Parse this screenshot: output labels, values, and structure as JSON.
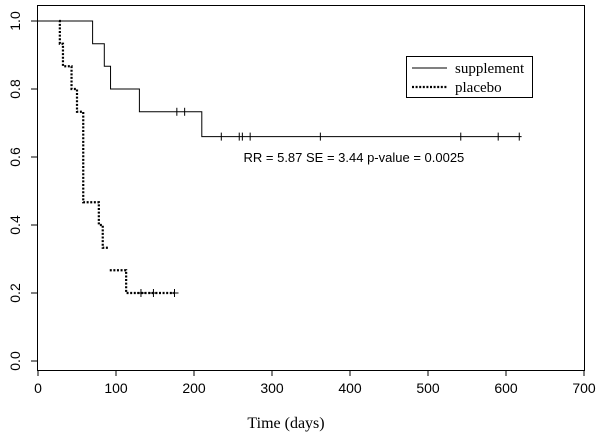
{
  "chart_data": {
    "type": "line",
    "subtype": "kaplan-meier survival curve",
    "title": "",
    "xlabel": "Time (days)",
    "ylabel": "",
    "xlim": [
      0,
      700
    ],
    "ylim": [
      0,
      1
    ],
    "x_ticks": [
      0,
      100,
      200,
      300,
      400,
      500,
      600,
      700
    ],
    "y_ticks": [
      0.0,
      0.2,
      0.4,
      0.6,
      0.8,
      1.0
    ],
    "y_tick_labels": [
      "0.0",
      "0.2",
      "0.4",
      "0.6",
      "0.8",
      "1.0"
    ],
    "legend_position": "top-right",
    "series": [
      {
        "name": "supplement",
        "line_style": "solid",
        "steps": [
          [
            0,
            1.0
          ],
          [
            70,
            0.933
          ],
          [
            85,
            0.867
          ],
          [
            93,
            0.8
          ],
          [
            130,
            0.733
          ],
          [
            210,
            0.66
          ],
          [
            620,
            0.66
          ]
        ],
        "censored": [
          [
            178,
            0.733
          ],
          [
            188,
            0.733
          ],
          [
            235,
            0.66
          ],
          [
            258,
            0.66
          ],
          [
            262,
            0.66
          ],
          [
            272,
            0.66
          ],
          [
            362,
            0.66
          ],
          [
            542,
            0.66
          ],
          [
            590,
            0.66
          ],
          [
            617,
            0.66
          ]
        ]
      },
      {
        "name": "placebo",
        "line_style": "dotted",
        "steps": [
          [
            27,
            1.0
          ],
          [
            28,
            0.933
          ],
          [
            32,
            0.867
          ],
          [
            43,
            0.8
          ],
          [
            50,
            0.733
          ],
          [
            58,
            0.467
          ],
          [
            78,
            0.4
          ],
          [
            83,
            0.333
          ],
          [
            90,
            0.333
          ]
        ],
        "extra_steps": [
          [
            92,
            0.267
          ],
          [
            113,
            0.2
          ],
          [
            175,
            0.2
          ]
        ],
        "censored": [
          [
            132,
            0.2
          ],
          [
            148,
            0.2
          ],
          [
            175,
            0.2
          ]
        ]
      }
    ],
    "annotations": [
      {
        "text": "RR = 5.87  SE = 3.44   p-value = 0.0025",
        "x": 405,
        "y": 0.585
      }
    ]
  }
}
